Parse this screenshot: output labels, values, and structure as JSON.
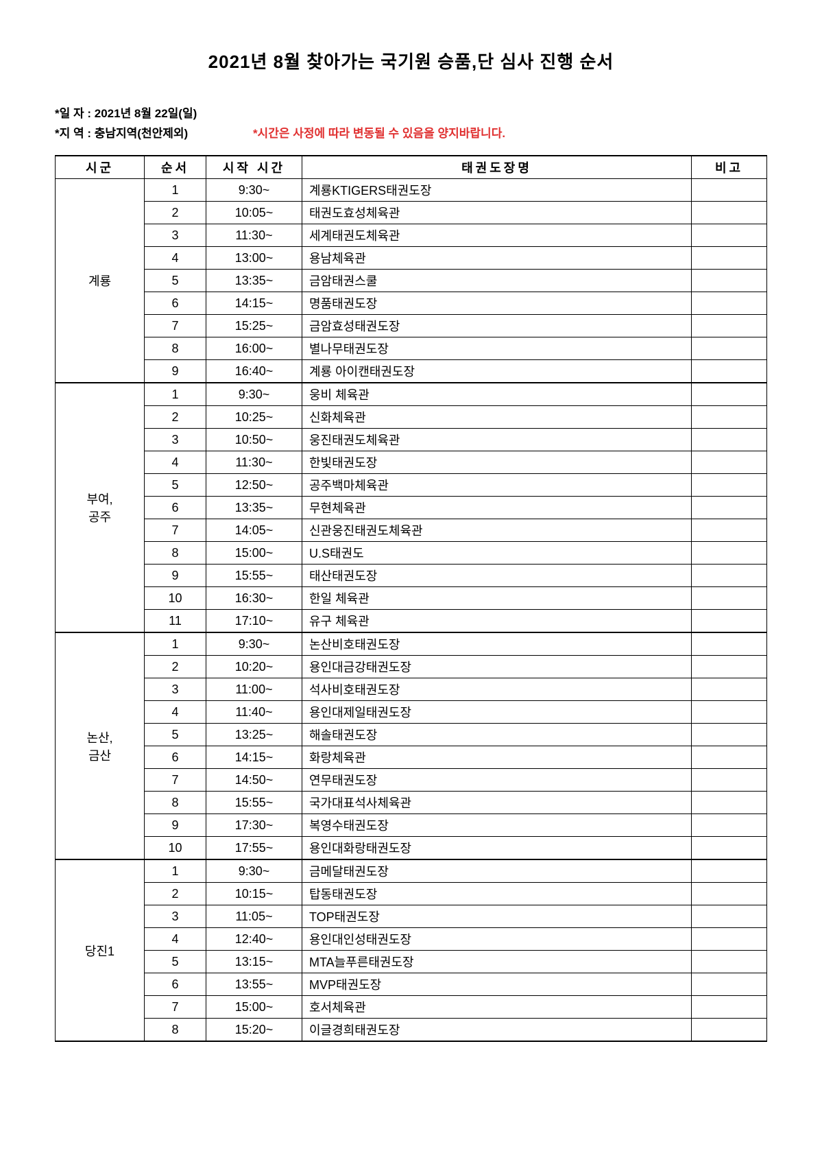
{
  "title": "2021년 8월 찾아가는 국기원 승품,단 심사 진행 순서",
  "meta": {
    "date_label": "*일 자 :",
    "date_value": "2021년 8월 22일(일)",
    "region_label": "*지 역 :",
    "region_value": "충남지역(천안제외)",
    "notice": "*시간은 사정에 따라 변동될 수 있음을 양지바랍니다."
  },
  "columns": {
    "region": "시군",
    "order": "순서",
    "time": "시작 시간",
    "name": "태권도장명",
    "note": "비고"
  },
  "groups": [
    {
      "region": "계룡",
      "rows": [
        {
          "order": "1",
          "time": "9:30~",
          "name": "계룡KTIGERS태권도장",
          "note": ""
        },
        {
          "order": "2",
          "time": "10:05~",
          "name": "태권도효성체육관",
          "note": ""
        },
        {
          "order": "3",
          "time": "11:30~",
          "name": "세계태권도체육관",
          "note": ""
        },
        {
          "order": "4",
          "time": "13:00~",
          "name": "용남체육관",
          "note": ""
        },
        {
          "order": "5",
          "time": "13:35~",
          "name": "금암태권스쿨",
          "note": ""
        },
        {
          "order": "6",
          "time": "14:15~",
          "name": "명품태권도장",
          "note": ""
        },
        {
          "order": "7",
          "time": "15:25~",
          "name": "금암효성태권도장",
          "note": ""
        },
        {
          "order": "8",
          "time": "16:00~",
          "name": "별나무태권도장",
          "note": ""
        },
        {
          "order": "9",
          "time": "16:40~",
          "name": "계룡 아이캔태권도장",
          "note": ""
        }
      ]
    },
    {
      "region": "부여,\n공주",
      "rows": [
        {
          "order": "1",
          "time": "9:30~",
          "name": "웅비  체육관",
          "note": ""
        },
        {
          "order": "2",
          "time": "10:25~",
          "name": "신화체육관",
          "note": ""
        },
        {
          "order": "3",
          "time": "10:50~",
          "name": "웅진태권도체육관",
          "note": ""
        },
        {
          "order": "4",
          "time": "11:30~",
          "name": "한빛태권도장",
          "note": ""
        },
        {
          "order": "5",
          "time": "12:50~",
          "name": "공주백마체육관",
          "note": ""
        },
        {
          "order": "6",
          "time": "13:35~",
          "name": "무현체육관",
          "note": ""
        },
        {
          "order": "7",
          "time": "14:05~",
          "name": "신관웅진태권도체육관",
          "note": ""
        },
        {
          "order": "8",
          "time": "15:00~",
          "name": "U.S태권도",
          "note": ""
        },
        {
          "order": "9",
          "time": "15:55~",
          "name": "태산태권도장",
          "note": ""
        },
        {
          "order": "10",
          "time": "16:30~",
          "name": "한일  체육관",
          "note": ""
        },
        {
          "order": "11",
          "time": "17:10~",
          "name": "유구  체육관",
          "note": ""
        }
      ]
    },
    {
      "region": "논산,\n금산",
      "rows": [
        {
          "order": "1",
          "time": "9:30~",
          "name": "논산비호태권도장",
          "note": ""
        },
        {
          "order": "2",
          "time": "10:20~",
          "name": "용인대금강태권도장",
          "note": ""
        },
        {
          "order": "3",
          "time": "11:00~",
          "name": "석사비호태권도장",
          "note": ""
        },
        {
          "order": "4",
          "time": "11:40~",
          "name": "용인대제일태권도장",
          "note": ""
        },
        {
          "order": "5",
          "time": "13:25~",
          "name": "해솔태권도장",
          "note": ""
        },
        {
          "order": "6",
          "time": "14:15~",
          "name": "화랑체육관",
          "note": ""
        },
        {
          "order": "7",
          "time": "14:50~",
          "name": "연무태권도장",
          "note": ""
        },
        {
          "order": "8",
          "time": "15:55~",
          "name": "국가대표석사체육관",
          "note": ""
        },
        {
          "order": "9",
          "time": "17:30~",
          "name": "복영수태권도장",
          "note": ""
        },
        {
          "order": "10",
          "time": "17:55~",
          "name": "용인대화랑태권도장",
          "note": ""
        }
      ]
    },
    {
      "region": "당진1",
      "rows": [
        {
          "order": "1",
          "time": "9:30~",
          "name": "금메달태권도장",
          "note": ""
        },
        {
          "order": "2",
          "time": "10:15~",
          "name": "탑동태권도장",
          "note": ""
        },
        {
          "order": "3",
          "time": "11:05~",
          "name": "TOP태권도장",
          "note": ""
        },
        {
          "order": "4",
          "time": "12:40~",
          "name": "용인대인성태권도장",
          "note": ""
        },
        {
          "order": "5",
          "time": "13:15~",
          "name": "MTA늘푸른태권도장",
          "note": ""
        },
        {
          "order": "6",
          "time": "13:55~",
          "name": "MVP태권도장",
          "note": ""
        },
        {
          "order": "7",
          "time": "15:00~",
          "name": "호서체육관",
          "note": ""
        },
        {
          "order": "8",
          "time": "15:20~",
          "name": "이글경희태권도장",
          "note": ""
        }
      ]
    }
  ]
}
